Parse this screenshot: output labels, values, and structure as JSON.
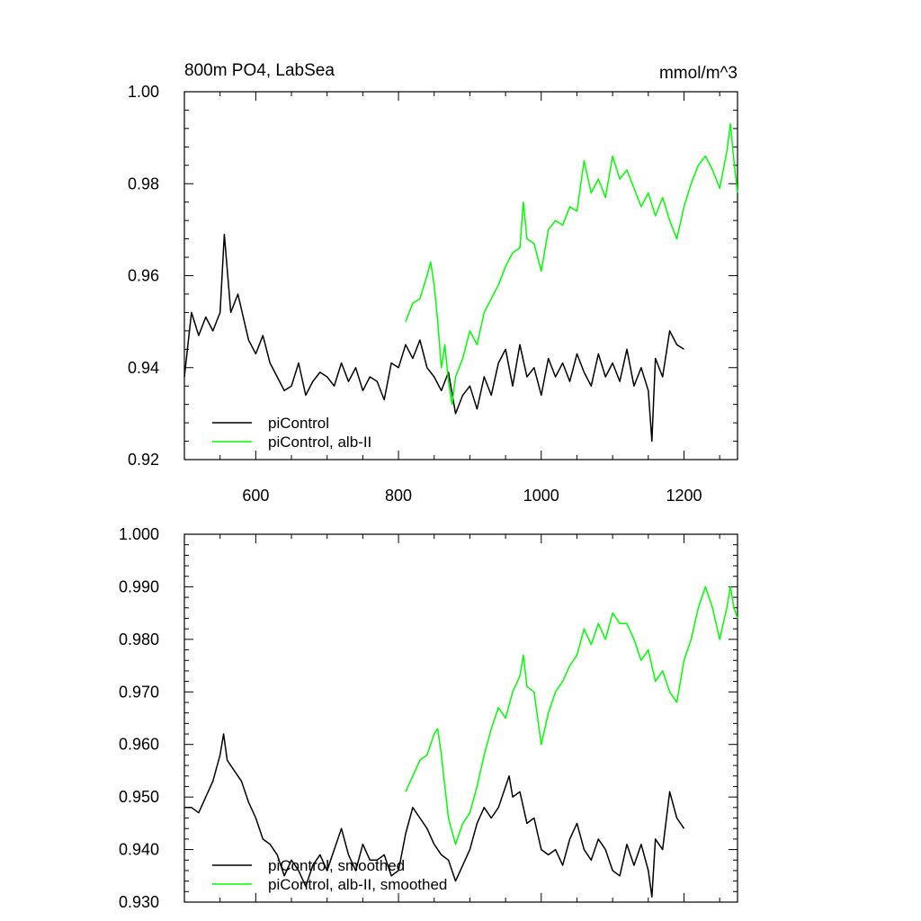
{
  "chart_data": [
    {
      "type": "line",
      "title_left": "800m PO4, LabSea",
      "title_right": "mmol/m^3",
      "xlim": [
        500,
        1275
      ],
      "ylim": [
        0.92,
        1.0
      ],
      "xticks": [
        600,
        800,
        1000,
        1200
      ],
      "yticks": [
        0.92,
        0.94,
        0.96,
        0.98,
        1.0
      ],
      "ytick_labels": [
        "0.92",
        "0.94",
        "0.96",
        "0.98",
        "1.00"
      ],
      "show_x_labels": true,
      "legend_position": "bottom-left",
      "series": [
        {
          "name": "piControl",
          "color": "#000000",
          "x": [
            500,
            510,
            520,
            530,
            540,
            550,
            556,
            565,
            575,
            590,
            600,
            610,
            620,
            630,
            640,
            650,
            660,
            670,
            680,
            690,
            700,
            710,
            720,
            730,
            740,
            750,
            760,
            770,
            780,
            790,
            800,
            810,
            820,
            830,
            840,
            850,
            860,
            870,
            880,
            890,
            900,
            910,
            920,
            930,
            940,
            950,
            960,
            970,
            980,
            990,
            1000,
            1010,
            1020,
            1030,
            1040,
            1050,
            1060,
            1070,
            1080,
            1090,
            1100,
            1110,
            1120,
            1130,
            1140,
            1150,
            1155,
            1160,
            1170,
            1180,
            1190,
            1200
          ],
          "values": [
            0.938,
            0.952,
            0.947,
            0.951,
            0.948,
            0.952,
            0.969,
            0.952,
            0.956,
            0.946,
            0.943,
            0.947,
            0.941,
            0.938,
            0.935,
            0.936,
            0.941,
            0.934,
            0.937,
            0.939,
            0.938,
            0.936,
            0.941,
            0.937,
            0.94,
            0.935,
            0.938,
            0.937,
            0.933,
            0.941,
            0.94,
            0.945,
            0.942,
            0.946,
            0.94,
            0.938,
            0.935,
            0.939,
            0.93,
            0.934,
            0.936,
            0.931,
            0.938,
            0.934,
            0.941,
            0.944,
            0.936,
            0.945,
            0.938,
            0.94,
            0.934,
            0.942,
            0.938,
            0.941,
            0.937,
            0.943,
            0.939,
            0.936,
            0.943,
            0.938,
            0.941,
            0.937,
            0.944,
            0.936,
            0.94,
            0.935,
            0.924,
            0.942,
            0.938,
            0.948,
            0.945,
            0.944
          ]
        },
        {
          "name": "piControl, alb-II",
          "color": "#00ff00",
          "x": [
            810,
            820,
            830,
            840,
            845,
            850,
            855,
            860,
            865,
            870,
            875,
            880,
            890,
            900,
            910,
            920,
            930,
            940,
            950,
            960,
            970,
            975,
            980,
            990,
            1000,
            1010,
            1020,
            1030,
            1040,
            1050,
            1060,
            1070,
            1080,
            1090,
            1100,
            1110,
            1120,
            1130,
            1140,
            1150,
            1160,
            1170,
            1180,
            1190,
            1200,
            1210,
            1220,
            1230,
            1240,
            1250,
            1260,
            1265,
            1270,
            1275
          ],
          "values": [
            0.95,
            0.954,
            0.955,
            0.96,
            0.963,
            0.958,
            0.95,
            0.94,
            0.945,
            0.937,
            0.932,
            0.938,
            0.942,
            0.948,
            0.945,
            0.952,
            0.955,
            0.958,
            0.962,
            0.965,
            0.966,
            0.976,
            0.968,
            0.967,
            0.961,
            0.97,
            0.972,
            0.971,
            0.975,
            0.974,
            0.985,
            0.978,
            0.981,
            0.977,
            0.986,
            0.981,
            0.983,
            0.979,
            0.975,
            0.978,
            0.973,
            0.977,
            0.972,
            0.968,
            0.975,
            0.98,
            0.984,
            0.986,
            0.983,
            0.979,
            0.987,
            0.993,
            0.985,
            0.978
          ]
        }
      ]
    },
    {
      "type": "line",
      "xlim": [
        500,
        1275
      ],
      "ylim": [
        0.93,
        1.0
      ],
      "xticks": [
        600,
        800,
        1000,
        1200
      ],
      "yticks": [
        0.93,
        0.94,
        0.95,
        0.96,
        0.97,
        0.98,
        0.99,
        1.0
      ],
      "ytick_labels": [
        "0.930",
        "0.940",
        "0.950",
        "0.960",
        "0.970",
        "0.980",
        "0.990",
        "1.000"
      ],
      "show_x_labels": false,
      "legend_position": "bottom-left",
      "series": [
        {
          "name": "piControl, smoothed",
          "color": "#000000",
          "x": [
            500,
            510,
            520,
            530,
            540,
            550,
            555,
            560,
            570,
            580,
            590,
            600,
            610,
            620,
            630,
            640,
            650,
            660,
            670,
            680,
            690,
            700,
            710,
            720,
            730,
            740,
            750,
            760,
            770,
            780,
            790,
            800,
            810,
            820,
            830,
            840,
            850,
            860,
            870,
            880,
            890,
            900,
            910,
            920,
            930,
            940,
            950,
            955,
            960,
            970,
            980,
            990,
            1000,
            1010,
            1020,
            1030,
            1040,
            1050,
            1060,
            1070,
            1080,
            1090,
            1100,
            1110,
            1120,
            1130,
            1140,
            1150,
            1155,
            1160,
            1170,
            1180,
            1190,
            1200
          ],
          "values": [
            0.948,
            0.948,
            0.947,
            0.95,
            0.953,
            0.958,
            0.962,
            0.957,
            0.955,
            0.953,
            0.949,
            0.946,
            0.942,
            0.941,
            0.939,
            0.935,
            0.938,
            0.936,
            0.933,
            0.937,
            0.939,
            0.936,
            0.94,
            0.944,
            0.939,
            0.936,
            0.941,
            0.938,
            0.938,
            0.939,
            0.935,
            0.936,
            0.943,
            0.948,
            0.946,
            0.944,
            0.941,
            0.939,
            0.938,
            0.934,
            0.937,
            0.94,
            0.945,
            0.948,
            0.946,
            0.948,
            0.952,
            0.954,
            0.95,
            0.951,
            0.945,
            0.946,
            0.94,
            0.939,
            0.94,
            0.937,
            0.942,
            0.945,
            0.94,
            0.938,
            0.942,
            0.94,
            0.936,
            0.935,
            0.941,
            0.937,
            0.941,
            0.936,
            0.931,
            0.942,
            0.94,
            0.951,
            0.946,
            0.944
          ]
        },
        {
          "name": "piControl, alb-II, smoothed",
          "color": "#00ff00",
          "x": [
            810,
            820,
            830,
            840,
            850,
            855,
            860,
            870,
            880,
            890,
            900,
            910,
            920,
            930,
            940,
            950,
            960,
            970,
            975,
            980,
            990,
            1000,
            1010,
            1020,
            1030,
            1040,
            1050,
            1060,
            1070,
            1080,
            1090,
            1100,
            1110,
            1120,
            1130,
            1140,
            1150,
            1160,
            1170,
            1180,
            1190,
            1200,
            1210,
            1220,
            1230,
            1240,
            1250,
            1260,
            1265,
            1270,
            1275
          ],
          "values": [
            0.951,
            0.954,
            0.957,
            0.958,
            0.962,
            0.963,
            0.958,
            0.946,
            0.941,
            0.945,
            0.947,
            0.952,
            0.958,
            0.963,
            0.967,
            0.965,
            0.97,
            0.973,
            0.977,
            0.971,
            0.97,
            0.96,
            0.966,
            0.97,
            0.972,
            0.975,
            0.977,
            0.982,
            0.979,
            0.983,
            0.98,
            0.985,
            0.983,
            0.983,
            0.98,
            0.976,
            0.978,
            0.972,
            0.974,
            0.97,
            0.968,
            0.976,
            0.98,
            0.986,
            0.99,
            0.986,
            0.98,
            0.986,
            0.99,
            0.986,
            0.984
          ]
        }
      ]
    }
  ]
}
